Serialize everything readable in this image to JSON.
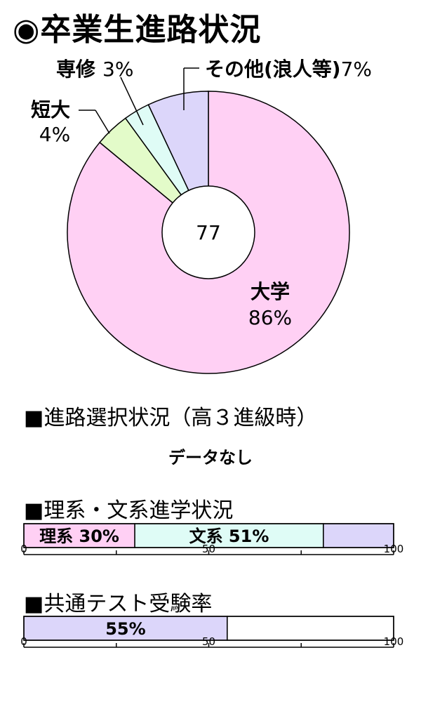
{
  "title": "◉卒業生進路状況",
  "donut": {
    "center_label": "77",
    "slices": [
      {
        "name": "大学",
        "label": "86%",
        "value": 86,
        "color": "#ffd0f4"
      },
      {
        "name": "短大",
        "label": "4%",
        "value": 4,
        "color": "#e3fbc9"
      },
      {
        "name": "専修",
        "label": "3%",
        "value": 3,
        "color": "#dffcf6"
      },
      {
        "name": "その他(浪人等)",
        "label": "7%",
        "value": 7,
        "color": "#dcd6fa"
      }
    ]
  },
  "section_career": {
    "title": "■進路選択状況（高３進級時）",
    "message": "データなし"
  },
  "section_science": {
    "title": "■理系・文系進学状況",
    "segments": [
      {
        "label": "理系 30%",
        "value": 30,
        "color": "#ffd0f4"
      },
      {
        "label": "文系 51%",
        "value": 51,
        "color": "#dffcf6"
      },
      {
        "label": "",
        "value": 19,
        "color": "#dcd6fa"
      }
    ],
    "axis_ticks": [
      "0",
      "50",
      "100"
    ]
  },
  "section_test": {
    "title": "■共通テスト受験率",
    "value": 55,
    "label": "55%",
    "color": "#dcd6fa",
    "axis_ticks": [
      "0",
      "50",
      "100"
    ]
  },
  "chart_data": [
    {
      "type": "pie",
      "categories": [
        "大学",
        "短大",
        "専修",
        "その他(浪人等)"
      ],
      "values": [
        86,
        4,
        3,
        7
      ],
      "title": "卒業生進路状況"
    },
    {
      "type": "bar",
      "categories": [
        "理系",
        "文系"
      ],
      "values": [
        30,
        51
      ],
      "title": "理系・文系進学状況",
      "xlim": [
        0,
        100
      ]
    },
    {
      "type": "bar",
      "categories": [
        "共通テスト受験率"
      ],
      "values": [
        55
      ],
      "title": "共通テスト受験率",
      "xlim": [
        0,
        100
      ]
    }
  ]
}
